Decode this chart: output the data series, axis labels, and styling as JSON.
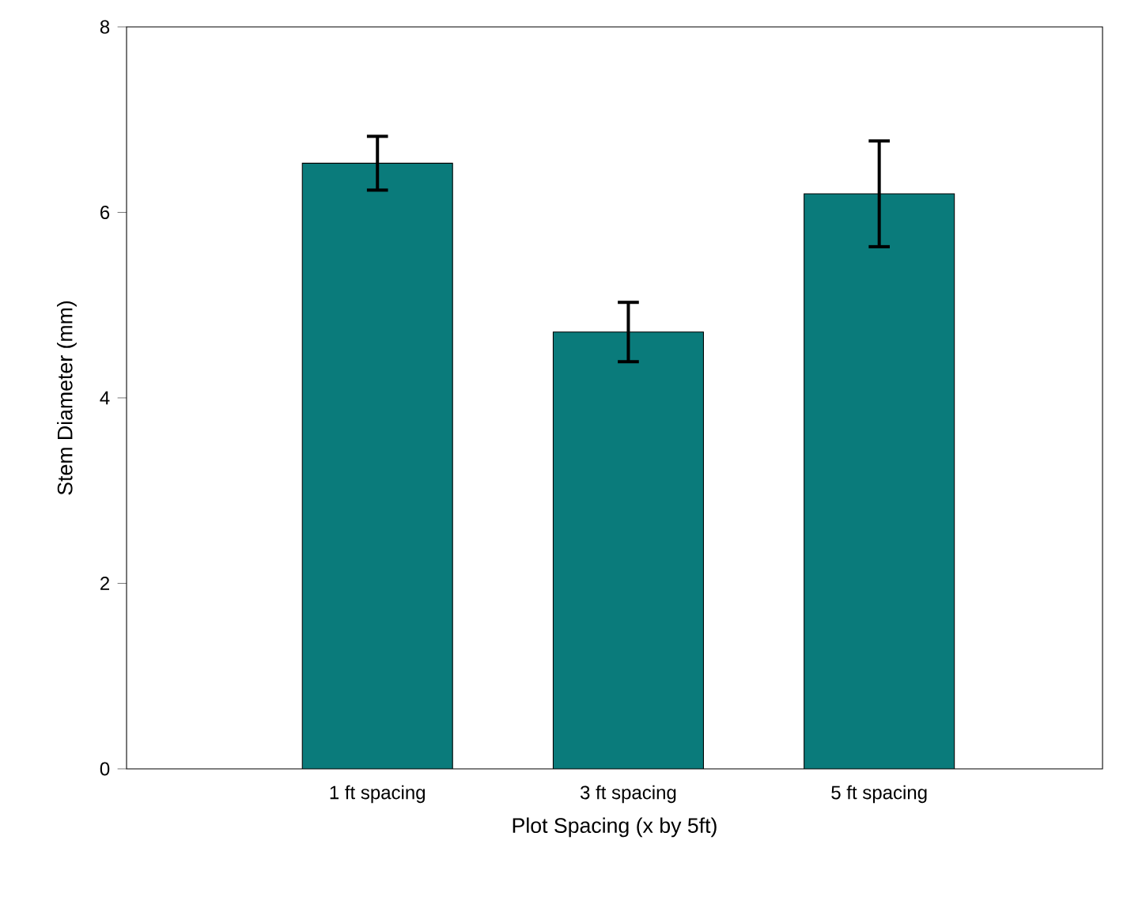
{
  "chart_data": {
    "type": "bar",
    "xlabel": "Plot Spacing (x by 5ft)",
    "ylabel": "Stem Diameter (mm)",
    "categories": [
      "1 ft spacing",
      "3 ft spacing",
      "5 ft spacing"
    ],
    "values": [
      6.53,
      4.71,
      6.2
    ],
    "errors": [
      0.29,
      0.32,
      0.57
    ],
    "color": "#0a7b7b",
    "ylim": [
      0,
      8
    ],
    "yticks": [
      0,
      2,
      4,
      6,
      8
    ],
    "grid": false
  }
}
